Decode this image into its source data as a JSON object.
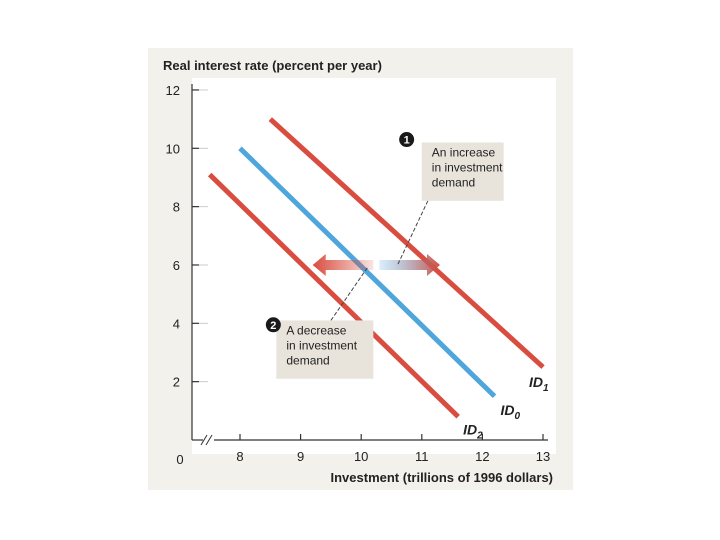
{
  "colors": {
    "panel": "#f3f1ec",
    "plot": "#ffffff",
    "axis": "#333333",
    "id1": "#d84d3f",
    "id0": "#4ea6dc",
    "id2": "#d84d3f",
    "note_box": "#e8e4dc"
  },
  "chart_data": {
    "type": "line",
    "ylabel": "Real interest rate (percent per year)",
    "xlabel": "Investment (trillions of 1996 dollars)",
    "xlim": [
      7.5,
      13
    ],
    "ylim": [
      0,
      12
    ],
    "x_ticks": [
      "8",
      "9",
      "10",
      "11",
      "12",
      "13"
    ],
    "y_ticks": [
      "2",
      "4",
      "6",
      "8",
      "10",
      "12"
    ],
    "origin_label": "0",
    "axis_break": true,
    "series": [
      {
        "key": "id1",
        "label_main": "ID",
        "label_sub": "1",
        "x": [
          8.5,
          13.0
        ],
        "y": [
          11.0,
          2.5
        ]
      },
      {
        "key": "id0",
        "label_main": "ID",
        "label_sub": "0",
        "x": [
          8.0,
          12.2
        ],
        "y": [
          10.0,
          1.5
        ]
      },
      {
        "key": "id2",
        "label_main": "ID",
        "label_sub": "2",
        "x": [
          7.5,
          11.6
        ],
        "y": [
          9.1,
          0.8
        ]
      }
    ],
    "shift_arrows": {
      "y": 6,
      "left": {
        "from": 10.2,
        "to": 9.2
      },
      "right": {
        "from": 10.3,
        "to": 11.3
      }
    },
    "annotations": [
      {
        "number": "1",
        "lines": [
          "An increase",
          "in investment",
          "demand"
        ],
        "box": {
          "x0": 11.0,
          "x1": 12.35,
          "y0": 10.2,
          "y1": 8.2
        },
        "badge": {
          "x": 10.75,
          "y": 10.3
        },
        "leader": {
          "from": [
            11.1,
            8.2
          ],
          "to": [
            10.6,
            6.0
          ]
        }
      },
      {
        "number": "2",
        "lines": [
          "A decrease",
          "in investment",
          "demand"
        ],
        "box": {
          "x0": 8.6,
          "x1": 10.2,
          "y0": 4.1,
          "y1": 2.1
        },
        "badge": {
          "x": 8.55,
          "y": 3.95
        },
        "leader": {
          "from": [
            9.5,
            4.1
          ],
          "to": [
            10.1,
            5.9
          ]
        }
      }
    ]
  }
}
